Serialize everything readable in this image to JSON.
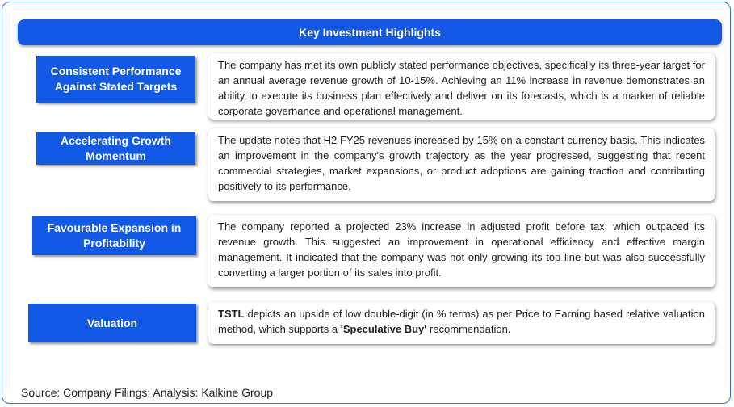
{
  "header": {
    "title": "Key Investment Highlights"
  },
  "highlights": [
    {
      "label": "Consistent Performance Against Stated Targets",
      "text": "The company has met its own publicly stated performance objectives, specifically its three-year target for an annual average revenue growth of 10-15%. Achieving an 11% increase in revenue demonstrates an ability to execute its business plan effectively and deliver on its forecasts, which is a marker of reliable corporate governance and operational management."
    },
    {
      "label": "Accelerating Growth Momentum",
      "text": "The update notes that H2 FY25 revenues increased by 15% on a constant currency basis. This indicates an improvement in the company's growth trajectory as the year progressed, suggesting that recent commercial strategies, market expansions, or product adoptions are gaining traction and contributing positively to its performance."
    },
    {
      "label": "Favourable Expansion in Profitability",
      "text": "The company reported a projected 23% increase in adjusted profit before tax, which outpaced its revenue growth. This suggested an improvement in operational efficiency and effective margin management. It indicated that the company was not only growing its top line but was also successfully converting a larger portion of its sales into profit."
    },
    {
      "label": "Valuation",
      "text_bold_1": "TSTL",
      "text_part_1": " depicts an upside of low double-digit (in % terms) as per Price to Earning based relative valuation method, which supports a ",
      "text_bold_2": "'Speculative Buy'",
      "text_part_2": " recommendation."
    }
  ],
  "footer": {
    "source": "Source: Company Filings; Analysis: Kalkine Group"
  }
}
